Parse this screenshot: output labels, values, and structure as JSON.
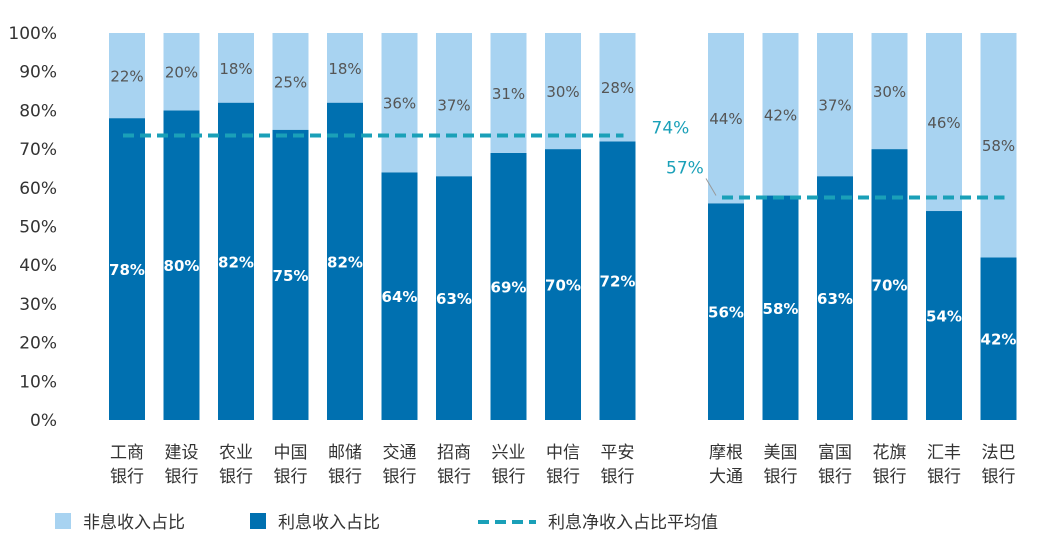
{
  "chart_data": {
    "type": "bar",
    "stacked": true,
    "title": "",
    "xlabel": "",
    "ylabel": "",
    "ylim": [
      0,
      100
    ],
    "yticks": [
      "0%",
      "10%",
      "20%",
      "30%",
      "40%",
      "50%",
      "60%",
      "70%",
      "80%",
      "90%",
      "100%"
    ],
    "categories": [
      [
        "工商",
        "银行"
      ],
      [
        "建设",
        "银行"
      ],
      [
        "农业",
        "银行"
      ],
      [
        "中国",
        "银行"
      ],
      [
        "邮储",
        "银行"
      ],
      [
        "交通",
        "银行"
      ],
      [
        "招商",
        "银行"
      ],
      [
        "兴业",
        "银行"
      ],
      [
        "中信",
        "银行"
      ],
      [
        "平安",
        "银行"
      ],
      [
        "摩根",
        "大通"
      ],
      [
        "美国",
        "银行"
      ],
      [
        "富国",
        "银行"
      ],
      [
        "花旗",
        "银行"
      ],
      [
        "汇丰",
        "银行"
      ],
      [
        "法巴",
        "银行"
      ]
    ],
    "groups": [
      {
        "indices": [
          0,
          1,
          2,
          3,
          4,
          5,
          6,
          7,
          8,
          9
        ]
      },
      {
        "indices": [
          10,
          11,
          12,
          13,
          14,
          15
        ]
      }
    ],
    "series": [
      {
        "name": "利息收入占比",
        "color": "#0070b0",
        "values": [
          78,
          80,
          82,
          75,
          82,
          64,
          63,
          69,
          70,
          72,
          56,
          58,
          63,
          70,
          54,
          42
        ],
        "labels": [
          "78%",
          "80%",
          "82%",
          "75%",
          "82%",
          "64%",
          "63%",
          "69%",
          "70%",
          "72%",
          "56%",
          "58%",
          "63%",
          "70%",
          "54%",
          "42%"
        ]
      },
      {
        "name": "非息收入占比",
        "color": "#a8d3f1",
        "values": [
          22,
          20,
          18,
          25,
          18,
          36,
          37,
          31,
          30,
          28,
          44,
          42,
          37,
          30,
          46,
          58
        ],
        "labels": [
          "22%",
          "20%",
          "18%",
          "25%",
          "18%",
          "36%",
          "37%",
          "31%",
          "30%",
          "28%",
          "44%",
          "42%",
          "37%",
          "30%",
          "46%",
          "58%"
        ]
      }
    ],
    "reference_lines": [
      {
        "value": 73.5,
        "label": "74%",
        "from_index": 0,
        "to_index": 9,
        "color": "#1aa0b8"
      },
      {
        "value": 57.5,
        "label": "57%",
        "from_index": 10,
        "to_index": 15,
        "color": "#1aa0b8"
      }
    ],
    "legend": {
      "placement": "bottom-left",
      "items": [
        {
          "label": "非息收入占比",
          "kind": "box",
          "color": "#a8d3f1"
        },
        {
          "label": "利息收入占比",
          "kind": "box",
          "color": "#0070b0"
        },
        {
          "label": "利息净收入占比平均值",
          "kind": "dash",
          "color": "#1aa0b8"
        }
      ]
    },
    "colors": {
      "axis_text": "#333333",
      "bar_label_dark": "#ffffff",
      "bar_label_light": "#555555",
      "reference_label": "#1aa0b8"
    }
  }
}
